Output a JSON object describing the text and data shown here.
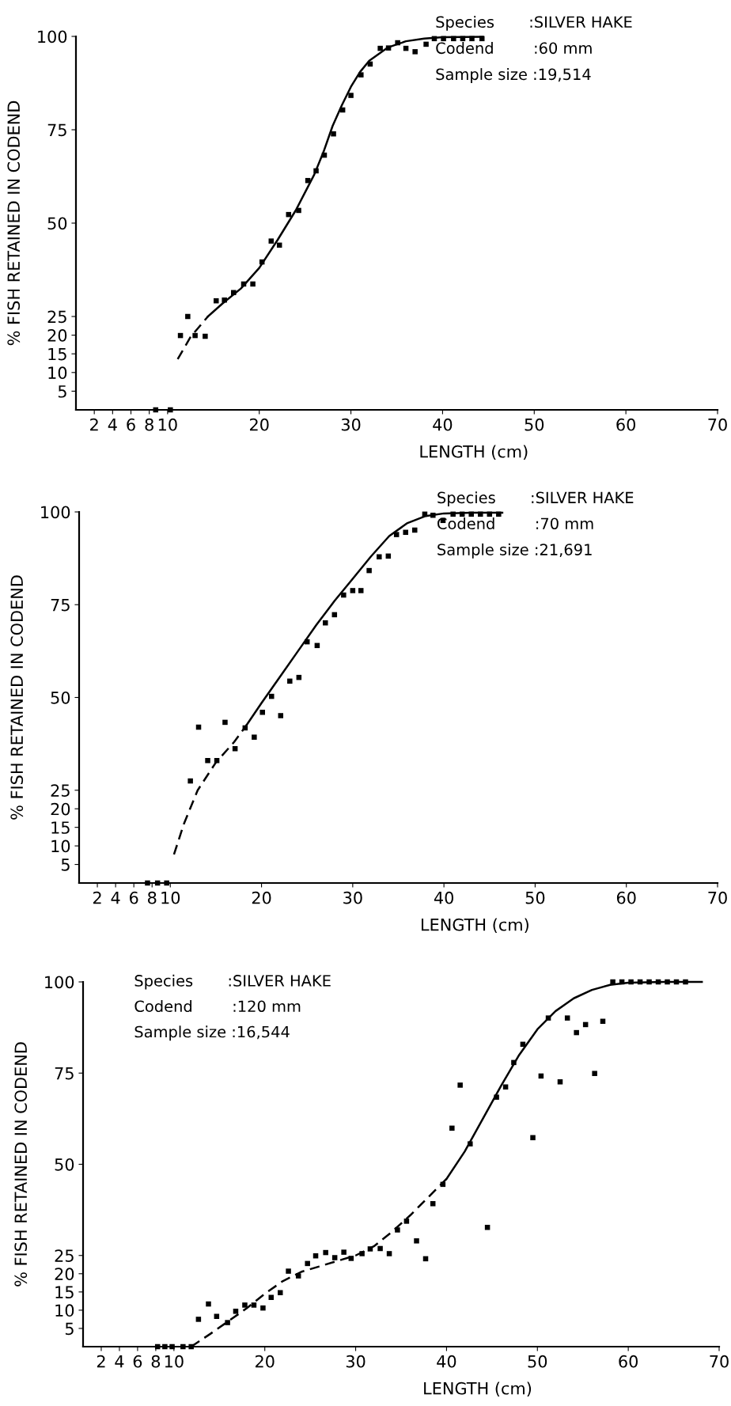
{
  "chart_data": [
    {
      "type": "scatter",
      "xlabel": "LENGTH (cm)",
      "ylabel": "% FISH RETAINED IN CODEND",
      "annotations": [
        "Species       :SILVER HAKE",
        "Codend        :60 mm",
        "Sample size :19,514"
      ],
      "xlim": [
        0,
        70
      ],
      "xticks": [
        2,
        4,
        6,
        8,
        10,
        20,
        30,
        40,
        50,
        60,
        70
      ],
      "ylim": [
        0,
        100
      ],
      "yticks": [
        5,
        10,
        15,
        20,
        25,
        50,
        75,
        100
      ],
      "grid": false,
      "legend": false,
      "series": [
        {
          "color": "#000000",
          "marker": "square",
          "x": [
            8.7,
            10.3,
            11.4,
            12.2,
            13.0,
            14.1,
            15.3,
            16.2,
            17.2,
            18.3,
            19.3,
            20.3,
            21.3,
            22.2,
            23.2,
            24.3,
            25.3,
            26.2,
            27.1,
            28.1,
            29.1,
            30.0,
            31.1,
            32.1,
            33.2,
            34.1,
            35.1,
            36.0,
            37.0,
            38.2,
            39.1,
            40.1,
            41.2,
            42.2,
            43.2,
            44.3
          ],
          "values": [
            0,
            0,
            19.9,
            25,
            19.9,
            19.7,
            29.2,
            29.4,
            31.4,
            33.7,
            33.7,
            39.6,
            45.2,
            44.1,
            52.3,
            53.4,
            61.4,
            64.0,
            68.2,
            73.9,
            80.3,
            84.2,
            89.7,
            92.6,
            96.8,
            96.9,
            98.3,
            96.8,
            95.9,
            97.9,
            99.4,
            99.4,
            99.4,
            99.4,
            99.4,
            99.4
          ]
        },
        {
          "type": "line",
          "color": "#000000",
          "marker": "none",
          "line_style": "dashed",
          "x": [
            11.1,
            12.5,
            14.4
          ],
          "values": [
            13.6,
            19.5,
            25
          ]
        },
        {
          "type": "line",
          "color": "#000000",
          "marker": "none",
          "line_style": "solid",
          "x": [
            14.4,
            16,
            18,
            20,
            22,
            24,
            26,
            27,
            28,
            29,
            30,
            31,
            32,
            34,
            36,
            38,
            40,
            44.4
          ],
          "values": [
            25,
            28.5,
            32.5,
            38,
            45.5,
            53.5,
            63,
            69,
            76,
            81.5,
            86.5,
            90.5,
            93.5,
            97,
            98.7,
            99.4,
            99.8,
            99.9
          ]
        }
      ]
    },
    {
      "type": "scatter",
      "xlabel": "LENGTH (cm)",
      "ylabel": "% FISH RETAINED IN CODEND",
      "annotations": [
        "Species       :SILVER HAKE",
        "Codend        :70 mm",
        "Sample size :21,691"
      ],
      "xlim": [
        0,
        70
      ],
      "xticks": [
        2,
        4,
        6,
        8,
        10,
        20,
        30,
        40,
        50,
        60,
        70
      ],
      "ylim": [
        0,
        100
      ],
      "yticks": [
        5,
        10,
        15,
        20,
        25,
        50,
        75,
        100
      ],
      "grid": false,
      "legend": false,
      "series": [
        {
          "color": "#000000",
          "marker": "square",
          "x": [
            7.5,
            8.6,
            9.6,
            12.2,
            13.1,
            14.1,
            15.1,
            16.0,
            17.1,
            18.2,
            19.2,
            20.1,
            21.1,
            22.1,
            23.1,
            24.1,
            25.0,
            26.1,
            27.0,
            28.0,
            29.0,
            30.0,
            30.9,
            31.8,
            32.9,
            33.9,
            34.8,
            35.8,
            36.8,
            37.9,
            38.8,
            39.9,
            41,
            42,
            43,
            44,
            45,
            46
          ],
          "values": [
            0,
            0,
            0,
            27.5,
            42.0,
            33.0,
            33.0,
            43.3,
            36.2,
            41.8,
            39.3,
            46.0,
            50.3,
            45.1,
            54.4,
            55.4,
            65.0,
            64.0,
            70.1,
            72.3,
            77.6,
            78.8,
            78.8,
            84.2,
            87.9,
            88.1,
            93.9,
            94.5,
            95.1,
            99.4,
            99.1,
            97.7,
            99.4,
            99.4,
            99.4,
            99.4,
            99.4,
            99.4
          ]
        },
        {
          "type": "line",
          "color": "#000000",
          "marker": "none",
          "line_style": "dashed",
          "x": [
            10.4,
            11.5,
            13,
            15,
            17,
            18.4
          ],
          "values": [
            7.7,
            16,
            25,
            32.5,
            38,
            42.7
          ]
        },
        {
          "type": "line",
          "color": "#000000",
          "marker": "none",
          "line_style": "solid",
          "x": [
            18.4,
            20,
            22,
            24,
            26,
            28,
            30,
            32,
            34,
            36,
            38,
            40,
            43,
            46.4
          ],
          "values": [
            42.7,
            48.5,
            55.5,
            62.5,
            69.5,
            76,
            82,
            88,
            93.5,
            97,
            98.9,
            99.6,
            99.8,
            99.8
          ]
        }
      ]
    },
    {
      "type": "scatter",
      "xlabel": "LENGTH (cm)",
      "ylabel": "% FISH RETAINED IN CODEND",
      "annotations": [
        "Species       :SILVER HAKE",
        "Codend        :120 mm",
        "Sample size :16,544"
      ],
      "xlim": [
        0,
        70
      ],
      "xticks": [
        2,
        4,
        6,
        8,
        10,
        20,
        30,
        40,
        50,
        60,
        70
      ],
      "ylim": [
        0,
        100
      ],
      "yticks": [
        5,
        10,
        15,
        20,
        25,
        50,
        75,
        100
      ],
      "grid": false,
      "legend": false,
      "series": [
        {
          "color": "#000000",
          "marker": "square",
          "x": [
            8.2,
            9.0,
            9.8,
            11.0,
            11.9,
            12.7,
            13.8,
            14.7,
            15.9,
            16.8,
            17.8,
            18.8,
            19.8,
            20.7,
            21.7,
            22.6,
            23.7,
            24.7,
            25.6,
            26.7,
            27.7,
            28.7,
            29.5,
            30.7,
            31.6,
            32.7,
            33.7,
            34.6,
            35.6,
            36.7,
            37.7,
            38.5,
            39.6,
            40.6,
            41.5,
            42.6,
            44.5,
            45.5,
            46.5,
            47.4,
            48.4,
            49.5,
            50.4,
            51.2,
            52.5,
            53.3,
            54.3,
            55.3,
            56.3,
            57.2,
            58.3,
            59.3,
            60.3,
            61.3,
            62.3,
            63.3,
            64.3,
            65.3,
            66.3
          ],
          "values": [
            0,
            0,
            0,
            0,
            0,
            7.5,
            11.7,
            8.3,
            6.6,
            9.7,
            11.4,
            11.4,
            10.6,
            13.5,
            14.8,
            20.7,
            19.4,
            22.8,
            24.9,
            25.8,
            24.4,
            25.9,
            24.2,
            25.5,
            26.8,
            26.9,
            25.5,
            32.0,
            34.4,
            29.0,
            24.1,
            39.2,
            44.5,
            59.9,
            71.7,
            55.6,
            32.7,
            68.4,
            71.2,
            77.9,
            82.9,
            57.3,
            74.2,
            90.1,
            72.6,
            90.1,
            86.1,
            88.3,
            74.9,
            89.2,
            100,
            100,
            100,
            100,
            100,
            100,
            100,
            100,
            100
          ]
        },
        {
          "type": "line",
          "color": "#000000",
          "marker": "none",
          "line_style": "dashed",
          "x": [
            11.9,
            14,
            16,
            18,
            20,
            22,
            24,
            26,
            28,
            30,
            32,
            34,
            36,
            38,
            40
          ],
          "values": [
            0,
            3.5,
            7,
            10.5,
            14.5,
            18,
            20.5,
            22,
            23.5,
            25,
            27.5,
            31.5,
            36,
            41,
            46
          ]
        },
        {
          "type": "line",
          "color": "#000000",
          "marker": "none",
          "line_style": "solid",
          "x": [
            40,
            42,
            44,
            46,
            48,
            50,
            52,
            54,
            56,
            58,
            60,
            64,
            68.1
          ],
          "values": [
            46,
            53.5,
            62.5,
            71.5,
            80,
            87,
            92,
            95.5,
            97.8,
            99.2,
            99.8,
            100,
            100
          ]
        }
      ]
    }
  ]
}
